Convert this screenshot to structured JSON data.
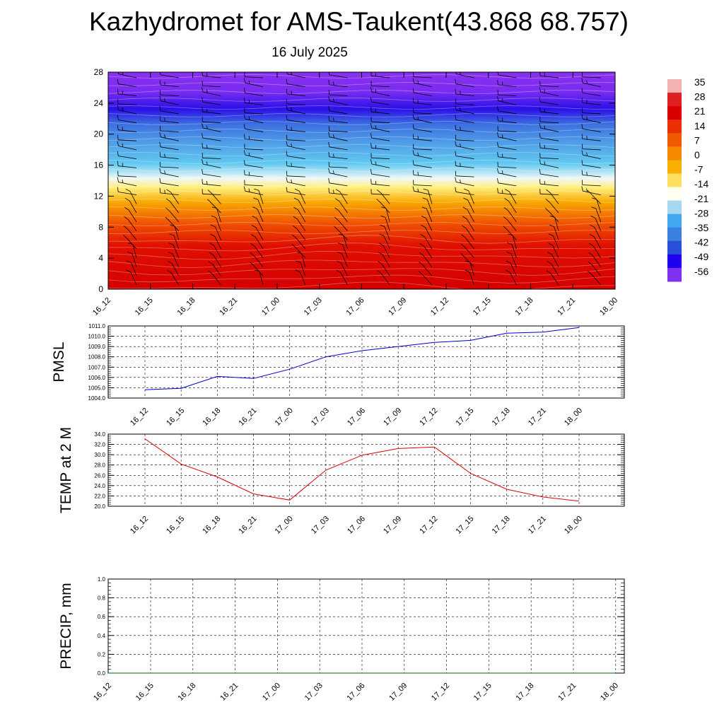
{
  "header": {
    "title": "Kazhydromet for AMS-Taukent(43.868 68.757)",
    "date": "16 July 2025"
  },
  "chart_data": [
    {
      "type": "heatmap",
      "id": "cross-section",
      "description_of_field": "temperature vs height with wind barbs",
      "x_ticks": [
        "16_12",
        "16_15",
        "16_18",
        "16_21",
        "17_00",
        "17_03",
        "17_06",
        "17_09",
        "17_12",
        "17_15",
        "17_18",
        "17_21",
        "18_00"
      ],
      "y_ticks": [
        "0",
        "4",
        "8",
        "12",
        "16",
        "20",
        "24",
        "28"
      ],
      "ylim": [
        0,
        28
      ],
      "colorbar_labels": [
        "35",
        "28",
        "21",
        "14",
        "7",
        "0",
        "-7",
        "-14",
        "-21",
        "-28",
        "-35",
        "-42",
        "-49",
        "-56"
      ],
      "colorscale": [
        "#f2b2b2",
        "#e02020",
        "#d80000",
        "#e83000",
        "#f05a00",
        "#f58a00",
        "#f8b000",
        "#fde060",
        "#fffff0",
        "#a8d8f0",
        "#40a8f0",
        "#3c80e0",
        "#2850d8",
        "#2000f0",
        "#8030f0"
      ]
    },
    {
      "type": "line",
      "id": "pmsl",
      "ylabel": "PMSL",
      "x": [
        "16_12",
        "16_15",
        "16_18",
        "16_21",
        "17_00",
        "17_03",
        "17_06",
        "17_09",
        "17_12",
        "17_15",
        "17_18",
        "17_21",
        "18_00"
      ],
      "series": [
        {
          "values": [
            1004.8,
            1004.95,
            1006.1,
            1005.9,
            1006.8,
            1008.0,
            1008.6,
            1009.0,
            1009.4,
            1009.6,
            1010.3,
            1010.4,
            1010.85
          ],
          "color": "#0000cc"
        }
      ],
      "ylim": [
        1004.0,
        1011.0
      ],
      "y_ticks": [
        "1004.0",
        "1005.0",
        "1006.0",
        "1007.0",
        "1008.0",
        "1009.0",
        "1010.0",
        "1011.0"
      ],
      "grid": true
    },
    {
      "type": "line",
      "id": "temp2m",
      "ylabel": "TEMP at 2 M",
      "x": [
        "16_12",
        "16_15",
        "16_18",
        "16_21",
        "17_00",
        "17_03",
        "17_06",
        "17_09",
        "17_12",
        "17_15",
        "17_18",
        "17_21",
        "18_00"
      ],
      "series": [
        {
          "values": [
            33.1,
            28.2,
            25.7,
            22.4,
            21.2,
            27.0,
            29.9,
            31.2,
            31.5,
            26.4,
            23.3,
            21.8,
            21.0
          ],
          "color": "#dd0000"
        }
      ],
      "ylim": [
        20.0,
        34.0
      ],
      "y_ticks": [
        "20.0",
        "22.0",
        "24.0",
        "26.0",
        "28.0",
        "30.0",
        "32.0",
        "34.0"
      ],
      "grid": true
    },
    {
      "type": "line",
      "id": "precip",
      "ylabel": "PRECIP, mm",
      "x": [
        "16_12",
        "16_15",
        "16_18",
        "16_21",
        "17_00",
        "17_03",
        "17_06",
        "17_09",
        "17_12",
        "17_15",
        "17_18",
        "17_21",
        "18_00"
      ],
      "series": [
        {
          "values": [
            0,
            0,
            0,
            0,
            0,
            0,
            0,
            0,
            0,
            0,
            0,
            0,
            0
          ],
          "color": "#006400"
        }
      ],
      "ylim": [
        0.0,
        1.0
      ],
      "y_ticks": [
        "0.0",
        "0.2",
        "0.4",
        "0.6",
        "0.8",
        "1.0"
      ],
      "grid": true
    }
  ]
}
